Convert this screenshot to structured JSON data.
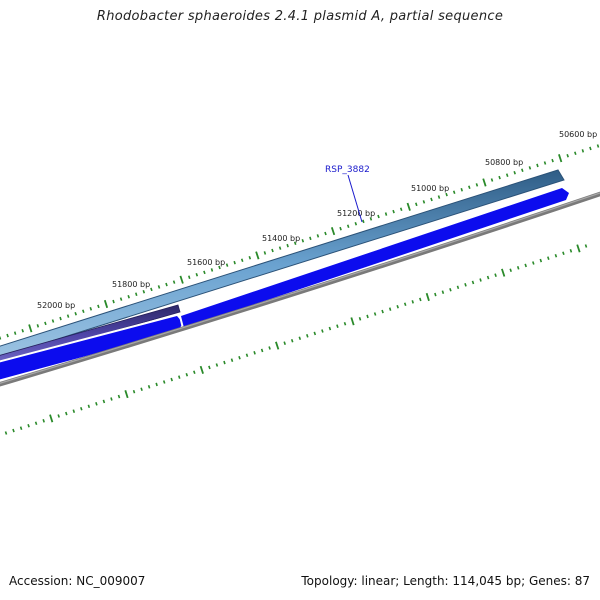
{
  "title": "Rhodobacter sphaeroides 2.4.1 plasmid A, partial sequence",
  "scale_labels": [
    "52000 bp",
    "51800 bp",
    "51600 bp",
    "51400 bp",
    "51200 bp",
    "51000 bp",
    "50800 bp",
    "50600 bp"
  ],
  "gene_label": "RSP_3882",
  "footer": {
    "accession": "Accession: NC_009007",
    "summary": "Topology: linear; Length: 114,045 bp; Genes: 87"
  },
  "colors": {
    "tick": "#2a8a2a",
    "gene_light": "#4f86b8",
    "gene_dark": "#4a3f98",
    "cds": "#0c0cee",
    "sequence_line": "#7a7a7a",
    "gene_label": "#1a1acc"
  }
}
